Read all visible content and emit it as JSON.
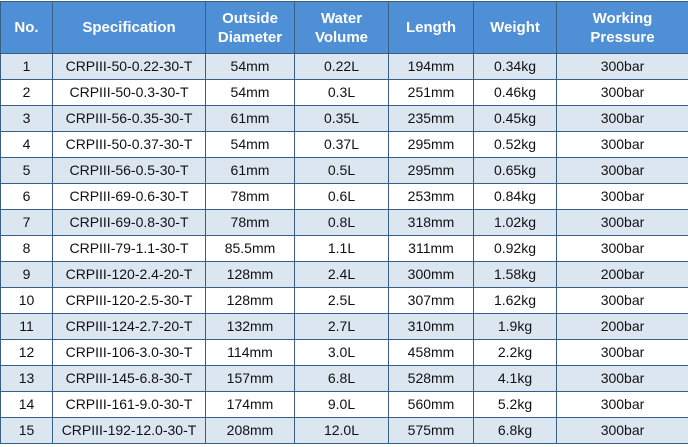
{
  "table": {
    "header": [
      "No.",
      "Specification",
      "Outside Diameter",
      "Water Volume",
      "Length",
      "Weight",
      "Working Pressure"
    ],
    "rows": [
      [
        "1",
        "CRPIII-50-0.22-30-T",
        "54mm",
        "0.22L",
        "194mm",
        "0.34kg",
        "300bar"
      ],
      [
        "2",
        "CRPIII-50-0.3-30-T",
        "54mm",
        "0.3L",
        "251mm",
        "0.46kg",
        "300bar"
      ],
      [
        "3",
        "CRPIII-56-0.35-30-T",
        "61mm",
        "0.35L",
        "235mm",
        "0.45kg",
        "300bar"
      ],
      [
        "4",
        "CRPIII-50-0.37-30-T",
        "54mm",
        "0.37L",
        "295mm",
        "0.52kg",
        "300bar"
      ],
      [
        "5",
        "CRPIII-56-0.5-30-T",
        "61mm",
        "0.5L",
        "295mm",
        "0.65kg",
        "300bar"
      ],
      [
        "6",
        "CRPIII-69-0.6-30-T",
        "78mm",
        "0.6L",
        "253mm",
        "0.84kg",
        "300bar"
      ],
      [
        "7",
        "CRPIII-69-0.8-30-T",
        "78mm",
        "0.8L",
        "318mm",
        "1.02kg",
        "300bar"
      ],
      [
        "8",
        "CRPIII-79-1.1-30-T",
        "85.5mm",
        "1.1L",
        "311mm",
        "0.92kg",
        "300bar"
      ],
      [
        "9",
        "CRPIII-120-2.4-20-T",
        "128mm",
        "2.4L",
        "300mm",
        "1.58kg",
        "200bar"
      ],
      [
        "10",
        "CRPIII-120-2.5-30-T",
        "128mm",
        "2.5L",
        "307mm",
        "1.62kg",
        "300bar"
      ],
      [
        "11",
        "CRPIII-124-2.7-20-T",
        "132mm",
        "2.7L",
        "310mm",
        "1.9kg",
        "200bar"
      ],
      [
        "12",
        "CRPIII-106-3.0-30-T",
        "114mm",
        "3.0L",
        "458mm",
        "2.2kg",
        "300bar"
      ],
      [
        "13",
        "CRPIII-145-6.8-30-T",
        "157mm",
        "6.8L",
        "528mm",
        "4.1kg",
        "300bar"
      ],
      [
        "14",
        "CRPIII-161-9.0-30-T",
        "174mm",
        "9.0L",
        "560mm",
        "5.2kg",
        "300bar"
      ],
      [
        "15",
        "CRPIII-192-12.0-30-T",
        "208mm",
        "12.0L",
        "575mm",
        "6.8kg",
        "300bar"
      ]
    ]
  }
}
